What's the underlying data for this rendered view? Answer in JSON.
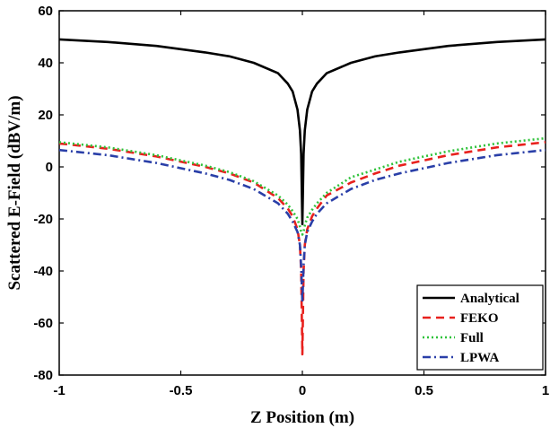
{
  "chart_data": {
    "type": "line",
    "title": "",
    "xlabel": "Z Position (m)",
    "ylabel": "Scattered E-Field (dBV/m)",
    "xlim": [
      -1,
      1
    ],
    "ylim": [
      -80,
      60
    ],
    "xticks": [
      -1,
      -0.5,
      0,
      0.5,
      1
    ],
    "xtick_labels": [
      "-1",
      "-0.5",
      "0",
      "0.5",
      "1"
    ],
    "yticks": [
      -80,
      -60,
      -40,
      -20,
      0,
      20,
      40,
      60
    ],
    "ytick_labels": [
      "-80",
      "-60",
      "-40",
      "-20",
      "0",
      "20",
      "40",
      "60"
    ],
    "grid": false,
    "legend_position": "bottom-right",
    "series": [
      {
        "name": "Analytical",
        "color": "#000000",
        "style": "solid",
        "x": [
          -1,
          -0.8,
          -0.6,
          -0.4,
          -0.3,
          -0.2,
          -0.1,
          -0.06,
          -0.04,
          -0.02,
          -0.01,
          -0.005,
          0,
          0.005,
          0.01,
          0.02,
          0.04,
          0.06,
          0.1,
          0.2,
          0.3,
          0.4,
          0.6,
          0.8,
          1
        ],
        "y": [
          49,
          48,
          46.5,
          44,
          42.5,
          40,
          36,
          32,
          29,
          22,
          14,
          5,
          -22,
          5,
          14,
          22,
          29,
          32,
          36,
          40,
          42.5,
          44,
          46.5,
          48,
          49
        ]
      },
      {
        "name": "FEKO",
        "color": "#e8211d",
        "style": "dashed",
        "x": [
          -1,
          -0.8,
          -0.6,
          -0.4,
          -0.3,
          -0.2,
          -0.1,
          -0.06,
          -0.04,
          -0.02,
          -0.01,
          -0.005,
          0,
          0.005,
          0.01,
          0.02,
          0.04,
          0.06,
          0.1,
          0.2,
          0.3,
          0.4,
          0.6,
          0.8,
          1
        ],
        "y": [
          9,
          7,
          4,
          0,
          -2.5,
          -6,
          -12,
          -16,
          -19,
          -24,
          -30,
          -40,
          -72,
          -40,
          -30,
          -24,
          -19,
          -16,
          -11,
          -6,
          -2.5,
          0.5,
          4.5,
          7.5,
          9.5
        ]
      },
      {
        "name": "Full",
        "color": "#2fc23a",
        "style": "dotted",
        "x": [
          -1,
          -0.8,
          -0.6,
          -0.4,
          -0.3,
          -0.2,
          -0.1,
          -0.06,
          -0.04,
          -0.02,
          -0.01,
          -0.005,
          0,
          0.005,
          0.01,
          0.02,
          0.04,
          0.06,
          0.1,
          0.2,
          0.3,
          0.4,
          0.6,
          0.8,
          1
        ],
        "y": [
          9.5,
          7.5,
          4.5,
          0.5,
          -2,
          -5.5,
          -11,
          -14.5,
          -17,
          -20,
          -23,
          -25,
          -26,
          -25,
          -22.5,
          -19.5,
          -16.5,
          -14,
          -10,
          -4,
          -1,
          2,
          6,
          9,
          11
        ]
      },
      {
        "name": "LPWA",
        "color": "#2a3fa8",
        "style": "dashdot",
        "x": [
          -1,
          -0.8,
          -0.6,
          -0.4,
          -0.3,
          -0.2,
          -0.1,
          -0.06,
          -0.04,
          -0.02,
          -0.01,
          -0.005,
          0,
          0.005,
          0.01,
          0.02,
          0.04,
          0.06,
          0.1,
          0.2,
          0.3,
          0.4,
          0.6,
          0.8,
          1
        ],
        "y": [
          6.5,
          4.5,
          1.5,
          -2.5,
          -5,
          -8.5,
          -14,
          -18,
          -21,
          -25,
          -30,
          -38,
          -52,
          -38,
          -30,
          -25,
          -21,
          -18,
          -14,
          -8.5,
          -5,
          -2.5,
          1.5,
          4.5,
          6.5
        ]
      }
    ]
  }
}
